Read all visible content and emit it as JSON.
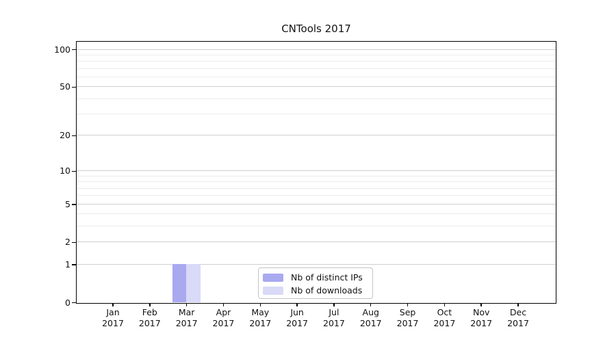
{
  "title": "CNTools 2017",
  "legend": {
    "items": [
      {
        "label": "Nb of distinct IPs",
        "color": "#a9a9f0"
      },
      {
        "label": "Nb of downloads",
        "color": "#d9d9f8"
      }
    ]
  },
  "colors": {
    "major_grid": "#cfcfcf",
    "minor_grid": "#ececec",
    "axis": "#000000",
    "background": "#ffffff"
  },
  "chart_data": {
    "type": "bar",
    "title": "CNTools 2017",
    "categories": [
      "Jan 2017",
      "Feb 2017",
      "Mar 2017",
      "Apr 2017",
      "May 2017",
      "Jun 2017",
      "Jul 2017",
      "Aug 2017",
      "Sep 2017",
      "Oct 2017",
      "Nov 2017",
      "Dec 2017"
    ],
    "x_tick_month": [
      "Jan",
      "Feb",
      "Mar",
      "Apr",
      "May",
      "Jun",
      "Jul",
      "Aug",
      "Sep",
      "Oct",
      "Nov",
      "Dec"
    ],
    "x_tick_year": "2017",
    "series": [
      {
        "name": "Nb of distinct IPs",
        "color": "#a9a9f0",
        "values": [
          0,
          0,
          1,
          0,
          0,
          0,
          0,
          0,
          0,
          0,
          0,
          0
        ]
      },
      {
        "name": "Nb of downloads",
        "color": "#d9d9f8",
        "values": [
          0,
          0,
          1,
          0,
          0,
          0,
          0,
          0,
          0,
          0,
          0,
          0
        ]
      }
    ],
    "xlabel": "",
    "ylabel": "",
    "yscale": "log(1+y)",
    "ylim": [
      0,
      115
    ],
    "yticks": [
      0,
      1,
      2,
      5,
      10,
      20,
      50,
      100
    ],
    "minor_gridlines": [
      3,
      4,
      6,
      7,
      8,
      9,
      30,
      40,
      60,
      70,
      80,
      90
    ],
    "grid": "horizontal",
    "legend_position": "lower center"
  }
}
